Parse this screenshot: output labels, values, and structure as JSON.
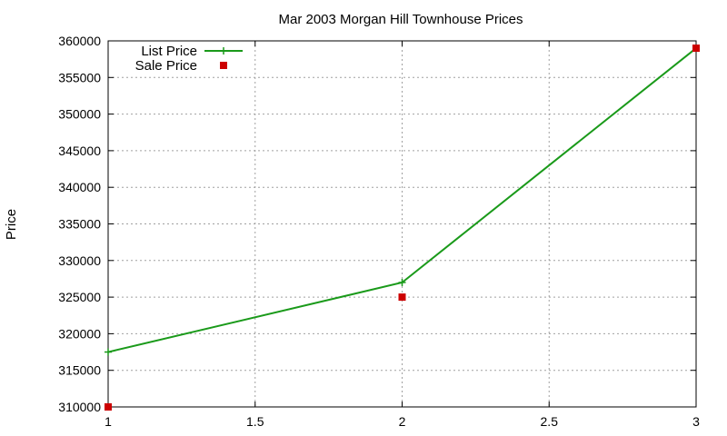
{
  "chart_data": {
    "type": "line",
    "title": "Mar 2003 Morgan Hill Townhouse Prices",
    "xlabel": "",
    "ylabel": "Price",
    "xlim": [
      1,
      3
    ],
    "ylim": [
      310000,
      360000
    ],
    "xticks": [
      1,
      1.5,
      2,
      2.5,
      3
    ],
    "yticks": [
      310000,
      315000,
      320000,
      325000,
      330000,
      335000,
      340000,
      345000,
      350000,
      355000,
      360000
    ],
    "grid": true,
    "legend_position": "top-left",
    "series": [
      {
        "name": "List Price",
        "style": "linespoints",
        "marker": "plus",
        "color": "#1a9a1a",
        "x": [
          1,
          2,
          3
        ],
        "y": [
          317500,
          327000,
          359000
        ]
      },
      {
        "name": "Sale Price",
        "style": "points",
        "marker": "square",
        "color": "#cc0000",
        "x": [
          1,
          2,
          3
        ],
        "y": [
          310000,
          325000,
          359000
        ]
      }
    ]
  }
}
